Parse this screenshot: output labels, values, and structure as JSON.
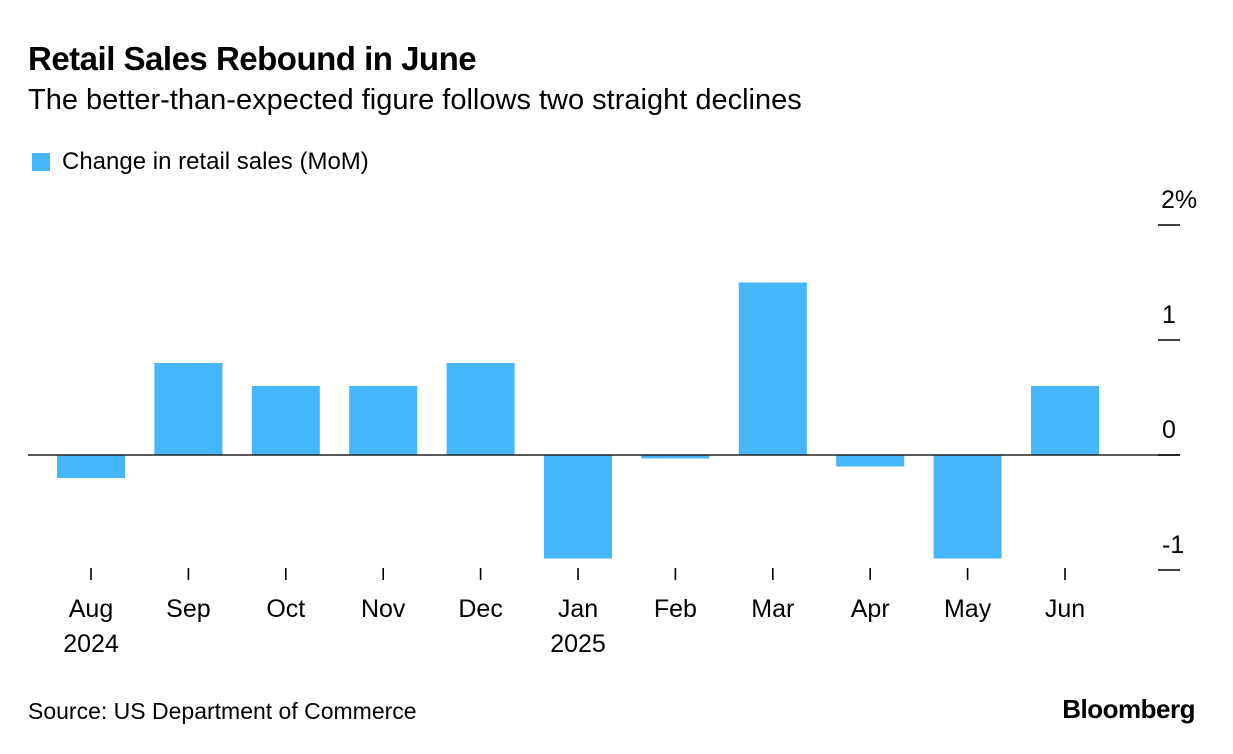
{
  "header": {
    "title": "Retail Sales Rebound in June",
    "subtitle": "The better-than-expected figure follows two straight declines"
  },
  "footer": {
    "source": "Source: US Department of Commerce",
    "brand": "Bloomberg"
  },
  "chart_data": {
    "type": "bar",
    "title": "Retail Sales Rebound in June",
    "subtitle": "The better-than-expected figure follows two straight declines",
    "xlabel": "",
    "ylabel": "",
    "categories": [
      "Aug",
      "Sep",
      "Oct",
      "Nov",
      "Dec",
      "Jan",
      "Feb",
      "Mar",
      "Apr",
      "May",
      "Jun"
    ],
    "category_sublabels": [
      "2024",
      "",
      "",
      "",
      "",
      "2025",
      "",
      "",
      "",
      "",
      ""
    ],
    "series": [
      {
        "name": "Change in retail sales (MoM)",
        "color": "#46b6fb",
        "values": [
          -0.2,
          0.8,
          0.6,
          0.6,
          0.8,
          -0.9,
          -0.03,
          1.5,
          -0.1,
          -0.9,
          0.6
        ]
      }
    ],
    "ylim": [
      -1,
      2
    ],
    "yticks": [
      2,
      1,
      0,
      -1
    ],
    "ytick_labels": [
      "2%",
      "1",
      "0",
      "-1"
    ],
    "y_axis_position": "right",
    "grid": false,
    "legend": "top-left"
  }
}
